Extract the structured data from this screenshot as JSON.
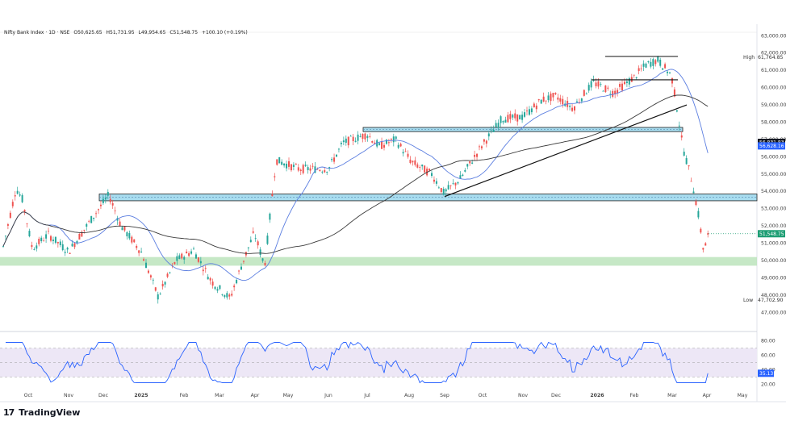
{
  "header": {
    "symbol": "Nifty Bank Index · 1D · NSE",
    "open": "O50,625.65",
    "high": "H51,731.95",
    "low": "L49,954.65",
    "close": "C51,548.75",
    "change": "+100.10 (+0.19%)"
  },
  "branding": {
    "logo_mark": "17",
    "name": "TradingView"
  },
  "colors": {
    "up": "#26a69a",
    "down": "#ef5350",
    "ma_fast": "#5b7ee0",
    "ma_slow": "#3a3a3a",
    "zone_fill": "#b8e2b8",
    "resistance_fill": "#a7dcef",
    "rsi": "#2962ff",
    "rsi_band": "#ede7f6",
    "last_price": "#1e9e74",
    "ma_fast_label": "#2962ff",
    "ma_slow_label": "#131722"
  },
  "chart_data": [
    {
      "type": "candlestick",
      "title": "Nifty Bank Index · 1D · NSE",
      "x_ticks": [
        "Oct",
        "Nov",
        "Dec",
        "2025",
        "Feb",
        "Mar",
        "Apr",
        "May",
        "Jun",
        "Jul",
        "Aug",
        "Sep",
        "Oct",
        "Nov",
        "Dec",
        "2026",
        "Feb",
        "Mar",
        "Apr",
        "May"
      ],
      "y_ticks": [
        47000,
        48000,
        49000,
        50000,
        51000,
        52000,
        53000,
        54000,
        55000,
        56000,
        57000,
        58000,
        59000,
        60000,
        61000,
        62000,
        63000
      ],
      "y_tick_labels": [
        "47,000.00",
        "48,000.00",
        "49,000.00",
        "50,000.00",
        "51,000.00",
        "52,000.00",
        "53,000.00",
        "54,000.00",
        "55,000.00",
        "56,000.00",
        "57,000.00",
        "58,000.00",
        "59,000.00",
        "60,000.00",
        "61,000.00",
        "62,000.00",
        "63,000.00"
      ],
      "ylim": [
        46500,
        63200
      ],
      "price_path": {
        "months": [
          "Oct",
          "Nov",
          "Dec",
          "2025",
          "Feb",
          "Mar",
          "Apr",
          "May",
          "Jun",
          "Jul",
          "Aug",
          "Sep",
          "Oct",
          "Nov",
          "Dec",
          "2026",
          "Feb",
          "Mar",
          "Apr",
          "May"
        ],
        "approx_close": [
          51500,
          50800,
          53200,
          51000,
          49500,
          48500,
          50000,
          55000,
          55500,
          57000,
          55000,
          54000,
          55500,
          57500,
          59000,
          59500,
          60500,
          57500,
          51548.75,
          null
        ]
      },
      "last": {
        "value": 51548.75,
        "label": "51,548.75"
      },
      "high": {
        "label": "High",
        "value": 61764.85,
        "text": "61,764.85"
      },
      "low": {
        "label": "Low",
        "value": 47702.9,
        "text": "47,702.90"
      },
      "moving_averages": [
        {
          "value": 56628.16,
          "label": "56,628.16"
        },
        {
          "value": 56831.83,
          "label": "56,831.83"
        }
      ],
      "zones": [
        {
          "kind": "support",
          "from": 49700,
          "to": 50200
        },
        {
          "kind": "resistance",
          "from": 53500,
          "to": 53800
        },
        {
          "kind": "resistance",
          "from": 57500,
          "to": 57650
        }
      ],
      "lines": [
        {
          "kind": "trendline",
          "from_date": "Sep",
          "from_value": 53700,
          "to_date": "Mar",
          "to_value": 59000
        },
        {
          "kind": "horizontal",
          "value": 61800,
          "from_date": "Feb",
          "to_date": "Mar"
        },
        {
          "kind": "horizontal",
          "value": 60450,
          "from_date": "Jan",
          "to_date": "Mar"
        }
      ]
    },
    {
      "type": "line",
      "title": "RSI",
      "y_ticks": [
        20,
        40,
        60,
        80
      ],
      "y_tick_labels": [
        "20.00",
        "40.00",
        "60.00",
        "80.00"
      ],
      "ylim": [
        17,
        83
      ],
      "band": [
        30,
        70
      ],
      "last": {
        "value": 35.13,
        "label": "35.13"
      }
    }
  ]
}
